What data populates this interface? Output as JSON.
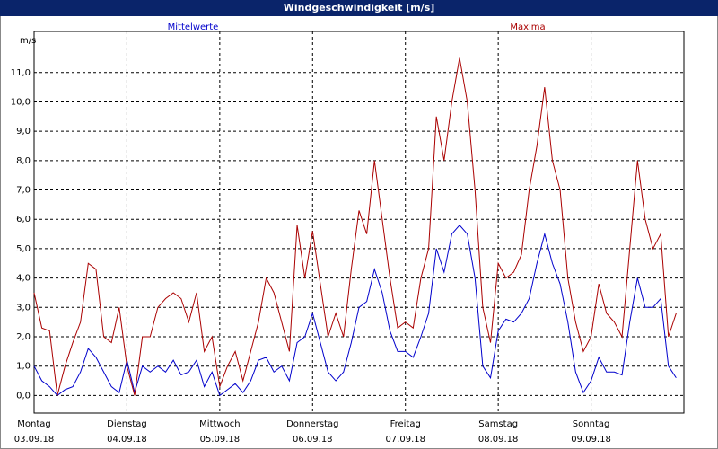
{
  "window_title": "Windgeschwindigkeit [m/s]",
  "chart_data": {
    "type": "line",
    "y_unit": "m/s",
    "x": [
      0,
      2,
      4,
      6,
      8,
      10,
      12,
      14,
      16,
      18,
      20,
      22,
      24,
      26,
      28,
      30,
      32,
      34,
      36,
      38,
      40,
      42,
      44,
      46,
      48,
      50,
      52,
      54,
      56,
      58,
      60,
      62,
      64,
      66,
      68,
      70,
      72,
      74,
      76,
      78,
      80,
      82,
      84,
      86,
      88,
      90,
      92,
      94,
      96,
      98,
      100,
      102,
      104,
      106,
      108,
      110,
      112,
      114,
      116,
      118,
      120,
      122,
      124,
      126,
      128,
      130,
      132,
      134,
      136,
      138,
      140,
      142,
      144,
      146,
      148,
      150,
      152,
      154,
      156,
      158,
      160,
      162,
      164,
      166
    ],
    "xlim": [
      0,
      168
    ],
    "xticks": [
      {
        "value": 0,
        "label": "Montag"
      },
      {
        "value": 24,
        "label": "Dienstag"
      },
      {
        "value": 48,
        "label": "Mittwoch"
      },
      {
        "value": 72,
        "label": "Donnerstag"
      },
      {
        "value": 96,
        "label": "Freitag"
      },
      {
        "value": 120,
        "label": "Samstag"
      },
      {
        "value": 144,
        "label": "Sonntag"
      }
    ],
    "xtick_dates": [
      "03.09.18",
      "04.09.18",
      "05.09.18",
      "06.09.18",
      "07.09.18",
      "08.09.18",
      "09.09.18"
    ],
    "ylim": [
      -0.6,
      12.4
    ],
    "yticks": [
      {
        "value": 0,
        "label": "0,0"
      },
      {
        "value": 1,
        "label": "1,0"
      },
      {
        "value": 2,
        "label": "2,0"
      },
      {
        "value": 3,
        "label": "3,0"
      },
      {
        "value": 4,
        "label": "4,0"
      },
      {
        "value": 5,
        "label": "5,0"
      },
      {
        "value": 6,
        "label": "6,0"
      },
      {
        "value": 7,
        "label": "7,0"
      },
      {
        "value": 8,
        "label": "8,0"
      },
      {
        "value": 9,
        "label": "9,0"
      },
      {
        "value": 10,
        "label": "10,0"
      },
      {
        "value": 11,
        "label": "11,0"
      }
    ],
    "grid": true,
    "series": [
      {
        "name": "Mittelwerte",
        "color": "#0000cc",
        "values": [
          1.0,
          0.5,
          0.3,
          0.0,
          0.2,
          0.3,
          0.8,
          1.6,
          1.3,
          0.8,
          0.3,
          0.1,
          1.2,
          0.1,
          1.0,
          0.8,
          1.0,
          0.8,
          1.2,
          0.7,
          0.8,
          1.2,
          0.3,
          0.8,
          0.0,
          0.2,
          0.4,
          0.1,
          0.5,
          1.2,
          1.3,
          0.8,
          1.0,
          0.5,
          1.8,
          2.0,
          2.8,
          1.8,
          0.8,
          0.5,
          0.8,
          1.8,
          3.0,
          3.2,
          4.3,
          3.5,
          2.2,
          1.5,
          1.5,
          1.3,
          2.0,
          2.8,
          5.0,
          4.2,
          5.5,
          5.8,
          5.5,
          4.0,
          1.0,
          0.6,
          2.2,
          2.6,
          2.5,
          2.8,
          3.3,
          4.5,
          5.5,
          4.5,
          3.8,
          2.5,
          0.8,
          0.1,
          0.5,
          1.3,
          0.8,
          0.8,
          0.7,
          2.5,
          4.0,
          3.0,
          3.0,
          3.3,
          1.0,
          0.6
        ]
      },
      {
        "name": "Maxima",
        "color": "#aa0000",
        "values": [
          3.5,
          2.3,
          2.2,
          0.0,
          1.0,
          1.8,
          2.5,
          4.5,
          4.3,
          2.0,
          1.8,
          3.0,
          1.0,
          0.0,
          2.0,
          2.0,
          3.0,
          3.3,
          3.5,
          3.3,
          2.5,
          3.5,
          1.5,
          2.0,
          0.3,
          1.0,
          1.5,
          0.5,
          1.5,
          2.5,
          4.0,
          3.5,
          2.5,
          1.5,
          5.8,
          4.0,
          5.6,
          3.8,
          2.0,
          2.8,
          2.0,
          4.3,
          6.3,
          5.5,
          8.0,
          6.0,
          4.0,
          2.3,
          2.5,
          2.3,
          4.0,
          5.0,
          9.5,
          8.0,
          10.0,
          11.5,
          10.0,
          7.0,
          3.0,
          1.8,
          4.5,
          4.0,
          4.2,
          4.8,
          7.0,
          8.5,
          10.5,
          8.0,
          7.0,
          4.0,
          2.5,
          1.5,
          2.0,
          3.8,
          2.8,
          2.5,
          2.0,
          5.0,
          8.0,
          6.0,
          5.0,
          5.5,
          2.0,
          2.8
        ]
      }
    ]
  }
}
